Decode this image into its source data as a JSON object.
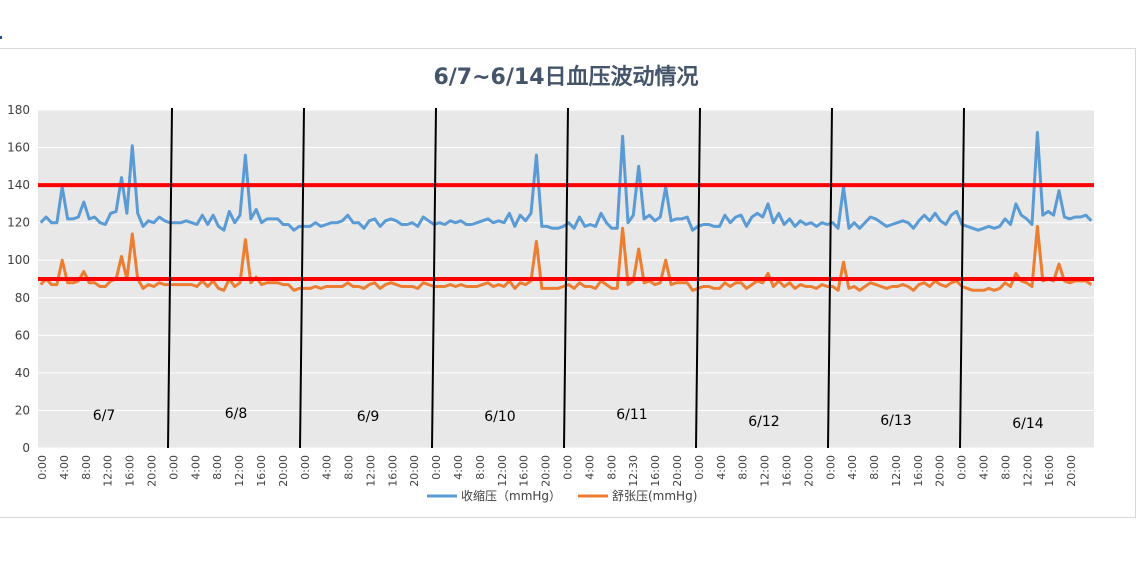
{
  "chart_data": {
    "type": "line",
    "title": "6/7~6/14日血压波动情况",
    "ylim": [
      0,
      180
    ],
    "yticks": [
      0,
      20,
      40,
      60,
      80,
      100,
      120,
      140,
      160,
      180
    ],
    "grid": "horizontal",
    "legend_placement": "bottom",
    "x_tick_labels": [
      "0:00",
      "4:00",
      "8:00",
      "12:00",
      "16:00",
      "20:00",
      "0:00",
      "4:00",
      "8:00",
      "12:00",
      "16:00",
      "20:00",
      "0:00",
      "4:00",
      "8:00",
      "12:00",
      "16:00",
      "20:00",
      "0:00",
      "4:00",
      "8:00",
      "12:00",
      "16:00",
      "20:00",
      "0:00",
      "4:00",
      "8:00",
      "12:30",
      "16:00",
      "20:00",
      "0:00",
      "4:00",
      "8:00",
      "12:00",
      "16:00",
      "20:00",
      "0:00",
      "4:00",
      "8:00",
      "12:00",
      "16:00",
      "20:00",
      "0:00",
      "4:00",
      "8:00",
      "12:00",
      "16:00",
      "20:00"
    ],
    "day_labels": [
      "6/7",
      "6/8",
      "6/9",
      "6/10",
      "6/11",
      "6/12",
      "6/13",
      "6/14"
    ],
    "thresholds": [
      {
        "value": 140,
        "color": "#ff0000"
      },
      {
        "value": 90,
        "color": "#ff0000"
      }
    ],
    "series": [
      {
        "name": "收缩压（mmHg）",
        "color": "#5b9bd5",
        "values": [
          120,
          123,
          120,
          120,
          139,
          122,
          122,
          123,
          131,
          122,
          123,
          120,
          119,
          125,
          126,
          144,
          125,
          161,
          125,
          118,
          121,
          120,
          123,
          121,
          120,
          120,
          120,
          121,
          120,
          119,
          124,
          119,
          124,
          118,
          116,
          126,
          120,
          124,
          156,
          122,
          127,
          120,
          122,
          122,
          122,
          119,
          119,
          116,
          118,
          118,
          118,
          120,
          118,
          119,
          120,
          120,
          121,
          124,
          120,
          120,
          117,
          121,
          122,
          118,
          121,
          122,
          121,
          119,
          119,
          120,
          118,
          123,
          121,
          119,
          120,
          119,
          121,
          120,
          121,
          119,
          119,
          120,
          121,
          122,
          120,
          121,
          120,
          125,
          118,
          124,
          121,
          125,
          156,
          118,
          118,
          117,
          117,
          118,
          120,
          117,
          123,
          118,
          119,
          118,
          125,
          120,
          117,
          117,
          166,
          120,
          124,
          150,
          122,
          124,
          121,
          123,
          139,
          121,
          122,
          122,
          123,
          116,
          118,
          119,
          119,
          118,
          118,
          124,
          120,
          123,
          124,
          118,
          123,
          125,
          123,
          130,
          120,
          125,
          119,
          122,
          118,
          121,
          119,
          120,
          118,
          120,
          119,
          120,
          117,
          139,
          117,
          120,
          117,
          120,
          123,
          122,
          120,
          118,
          119,
          120,
          121,
          120,
          117,
          121,
          124,
          121,
          125,
          121,
          119,
          124,
          126,
          119,
          118,
          117,
          116,
          117,
          118,
          117,
          118,
          122,
          119,
          130,
          124,
          122,
          119,
          168,
          124,
          126,
          124,
          137,
          123,
          122,
          123,
          123,
          124,
          121
        ]
      },
      {
        "name": "舒张压(mmHg)",
        "color": "#ed7d31",
        "values": [
          87,
          90,
          87,
          87,
          100,
          88,
          88,
          89,
          94,
          88,
          88,
          86,
          86,
          89,
          90,
          102,
          90,
          114,
          90,
          85,
          87,
          86,
          88,
          87,
          87,
          87,
          87,
          87,
          87,
          86,
          89,
          86,
          89,
          85,
          84,
          90,
          86,
          88,
          111,
          88,
          91,
          87,
          88,
          88,
          88,
          87,
          87,
          84,
          85,
          85,
          85,
          86,
          85,
          86,
          86,
          86,
          86,
          88,
          86,
          86,
          85,
          87,
          88,
          85,
          87,
          88,
          87,
          86,
          86,
          86,
          85,
          88,
          87,
          86,
          86,
          86,
          87,
          86,
          87,
          86,
          86,
          86,
          87,
          88,
          86,
          87,
          86,
          89,
          85,
          88,
          87,
          89,
          110,
          85,
          85,
          85,
          85,
          86,
          87,
          85,
          88,
          86,
          86,
          85,
          89,
          87,
          85,
          85,
          117,
          87,
          89,
          106,
          88,
          89,
          87,
          88,
          100,
          87,
          88,
          88,
          88,
          84,
          85,
          86,
          86,
          85,
          85,
          88,
          86,
          88,
          88,
          85,
          87,
          89,
          88,
          93,
          86,
          89,
          86,
          88,
          85,
          87,
          86,
          86,
          85,
          87,
          86,
          86,
          84,
          99,
          85,
          86,
          84,
          86,
          88,
          87,
          86,
          85,
          86,
          86,
          87,
          86,
          84,
          87,
          88,
          86,
          89,
          87,
          86,
          88,
          89,
          86,
          85,
          84,
          84,
          84,
          85,
          84,
          85,
          88,
          86,
          93,
          89,
          88,
          86,
          118,
          89,
          90,
          89,
          98,
          89,
          88,
          89,
          89,
          89,
          87
        ]
      }
    ]
  }
}
